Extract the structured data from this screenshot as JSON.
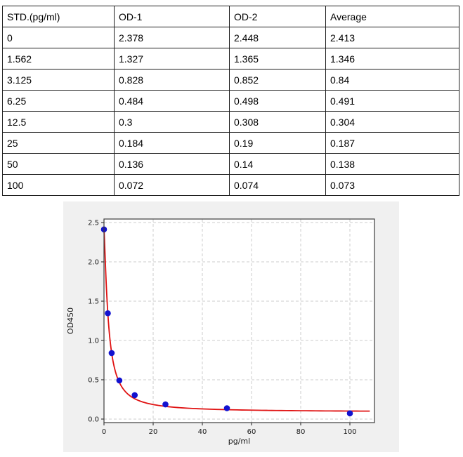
{
  "table": {
    "headers": [
      "STD.(pg/ml)",
      "OD-1",
      "OD-2",
      "Average"
    ],
    "rows": [
      [
        "0",
        "2.378",
        "2.448",
        "2.413"
      ],
      [
        "1.562",
        "1.327",
        "1.365",
        "1.346"
      ],
      [
        "3.125",
        "0.828",
        "0.852",
        "0.84"
      ],
      [
        "6.25",
        "0.484",
        "0.498",
        "0.491"
      ],
      [
        "12.5",
        "0.3",
        "0.308",
        "0.304"
      ],
      [
        "25",
        "0.184",
        "0.19",
        "0.187"
      ],
      [
        "50",
        "0.136",
        "0.14",
        "0.138"
      ],
      [
        "100",
        "0.072",
        "0.074",
        "0.073"
      ]
    ]
  },
  "chart_data": {
    "type": "scatter",
    "title": "",
    "xlabel": "pg/ml",
    "ylabel": "OD450",
    "x": [
      0,
      1.562,
      3.125,
      6.25,
      12.5,
      25,
      50,
      100
    ],
    "y": [
      2.413,
      1.346,
      0.84,
      0.491,
      0.304,
      0.187,
      0.138,
      0.073
    ],
    "xlim": [
      0,
      110
    ],
    "ylim": [
      -0.045,
      2.545
    ],
    "xticks": {
      "values": [
        0,
        20,
        40,
        60,
        80,
        100
      ],
      "labels": [
        "0",
        "20",
        "40",
        "60",
        "80",
        "100"
      ]
    },
    "yticks": {
      "values": [
        0,
        0.5,
        1.0,
        1.5,
        2.0,
        2.5
      ],
      "labels": [
        "0.0",
        "0.5",
        "1.0",
        "1.5",
        "2.0",
        "2.5"
      ]
    },
    "grid": true,
    "legend": "none",
    "series": [
      {
        "name": "standard-points",
        "type": "scatter",
        "marker": "circle",
        "color": "#1212d0"
      },
      {
        "name": "fit-curve",
        "type": "line",
        "color": "#e01212",
        "fit": {
          "model": "4PL",
          "a": 2.413,
          "b": 1.303,
          "c": 1.77,
          "d": 0.09
        }
      }
    ],
    "colors": {
      "figure_bg": "#f0f0f0",
      "plot_bg": "#ffffff",
      "grid": "#cccccc",
      "spine": "#3c3c3c",
      "tick_label": "#1a1a1a",
      "axis_label": "#1a1a1a"
    }
  }
}
